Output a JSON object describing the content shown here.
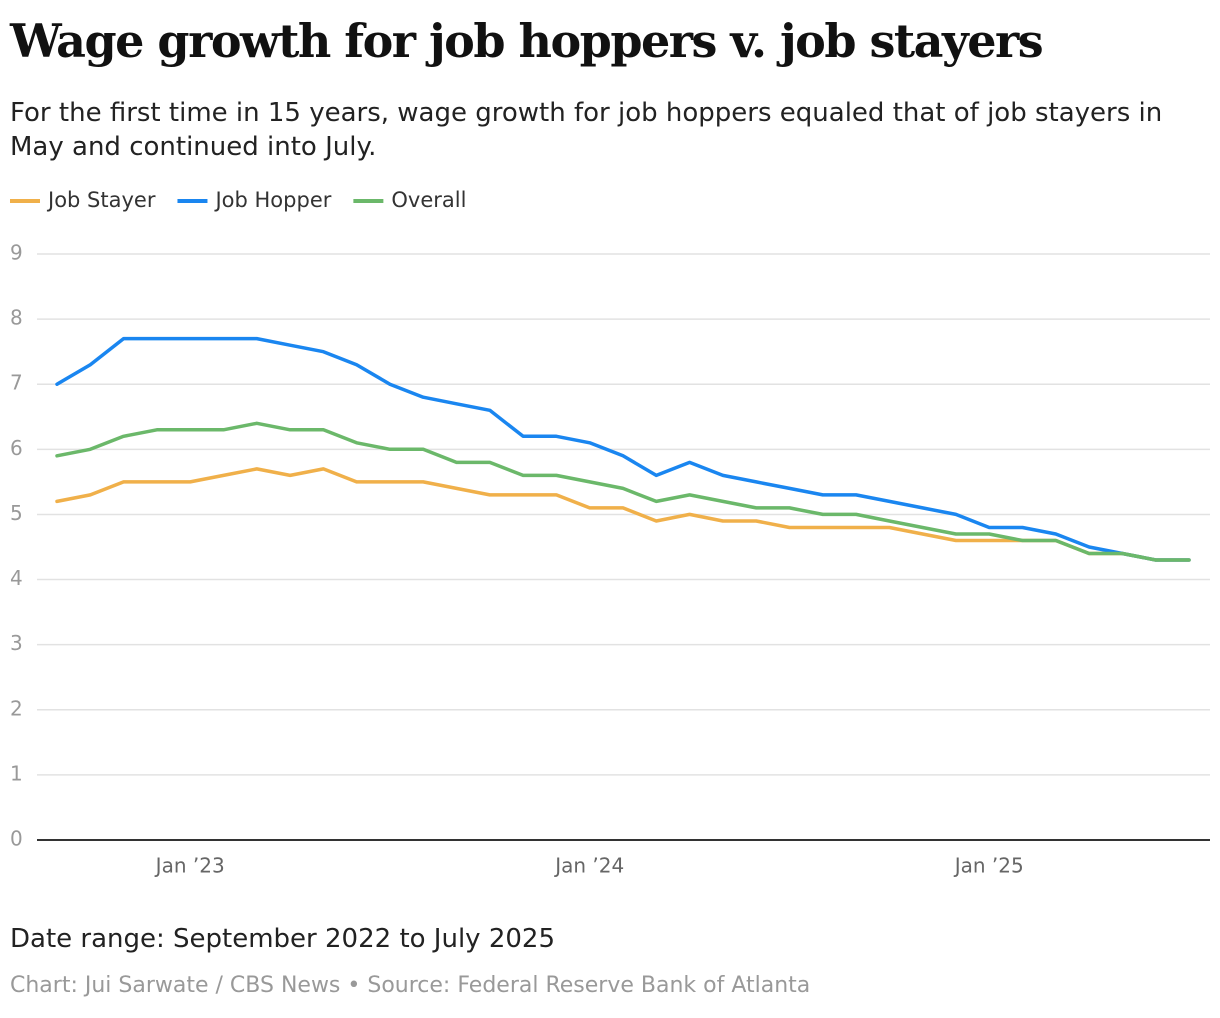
{
  "chart_data": {
    "type": "line",
    "title": "Wage growth for job hoppers v. job stayers",
    "subtitle": "For the first time in 15 years, wage growth for job hoppers equaled that of job stayers in May and continued into July.",
    "note": "Date range: September 2022 to July 2025",
    "credit": "Chart: Jui Sarwate / CBS News • Source: Federal Reserve Bank of Atlanta",
    "categories": [
      null,
      null,
      null,
      null,
      "Jan ’23",
      null,
      null,
      null,
      null,
      null,
      null,
      null,
      null,
      null,
      null,
      null,
      "Jan ’24",
      null,
      null,
      null,
      null,
      null,
      null,
      null,
      null,
      null,
      null,
      null,
      "Jan ’25",
      null,
      null,
      null,
      null,
      null,
      null
    ],
    "series": [
      {
        "name": "Job Stayer",
        "color": "#f0b04a",
        "values": [
          5.2,
          5.3,
          5.5,
          5.5,
          5.5,
          5.6,
          5.7,
          5.6,
          5.7,
          5.5,
          5.5,
          5.5,
          5.4,
          5.3,
          5.3,
          5.3,
          5.1,
          5.1,
          4.9,
          5.0,
          4.9,
          4.9,
          4.8,
          4.8,
          4.8,
          4.8,
          4.7,
          4.6,
          4.6,
          4.6,
          4.6,
          4.4,
          4.4,
          4.3,
          4.3
        ]
      },
      {
        "name": "Job Hopper",
        "color": "#1a86f0",
        "values": [
          7.0,
          7.3,
          7.7,
          7.7,
          7.7,
          7.7,
          7.7,
          7.6,
          7.5,
          7.3,
          7.0,
          6.8,
          6.7,
          6.6,
          6.2,
          6.2,
          6.1,
          5.9,
          5.6,
          5.8,
          5.6,
          5.5,
          5.4,
          5.3,
          5.3,
          5.2,
          5.1,
          5.0,
          4.8,
          4.8,
          4.7,
          4.5,
          4.4,
          4.3,
          4.3
        ]
      },
      {
        "name": "Overall",
        "color": "#6bb86a",
        "values": [
          5.9,
          6.0,
          6.2,
          6.3,
          6.3,
          6.3,
          6.4,
          6.3,
          6.3,
          6.1,
          6.0,
          6.0,
          5.8,
          5.8,
          5.6,
          5.6,
          5.5,
          5.4,
          5.2,
          5.3,
          5.2,
          5.1,
          5.1,
          5.0,
          5.0,
          4.9,
          4.8,
          4.7,
          4.7,
          4.6,
          4.6,
          4.4,
          4.4,
          4.3,
          4.3
        ]
      }
    ],
    "ylim": [
      0,
      9
    ],
    "yticks": [
      0,
      1,
      2,
      3,
      4,
      5,
      6,
      7,
      8,
      9
    ],
    "grid": true
  }
}
